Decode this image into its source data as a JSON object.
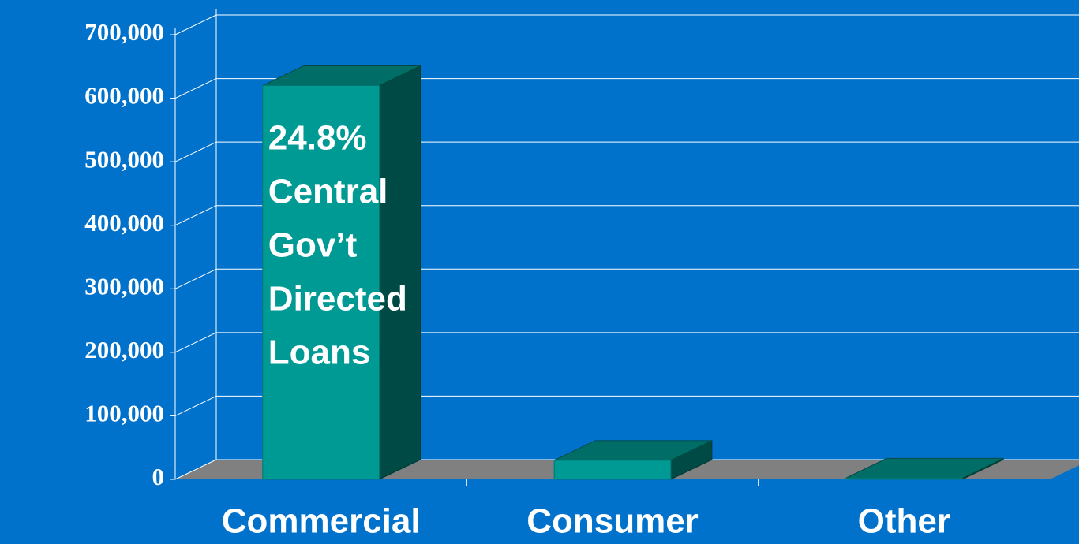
{
  "chart_data": {
    "type": "bar3d",
    "categories": [
      "Commercial",
      "Consumer",
      "Other"
    ],
    "values": [
      620000,
      30000,
      2000
    ],
    "color": "#009a94",
    "ylim": [
      0,
      700000
    ],
    "yticks": [
      0,
      {
        "value": 100000,
        "label": "100,000"
      },
      {
        "value": 200000,
        "label": "200,000"
      },
      {
        "value": 300000,
        "label": "300,000"
      },
      {
        "value": 400000,
        "label": "400,000"
      },
      {
        "value": 500000,
        "label": "500,000"
      },
      {
        "value": 600000,
        "label": "600,000"
      },
      {
        "value": 700000,
        "label": "700,000"
      }
    ],
    "grid": true,
    "annotation": [
      "24.8%",
      "Central",
      "Gov’t",
      "Directed",
      "Loans"
    ]
  }
}
